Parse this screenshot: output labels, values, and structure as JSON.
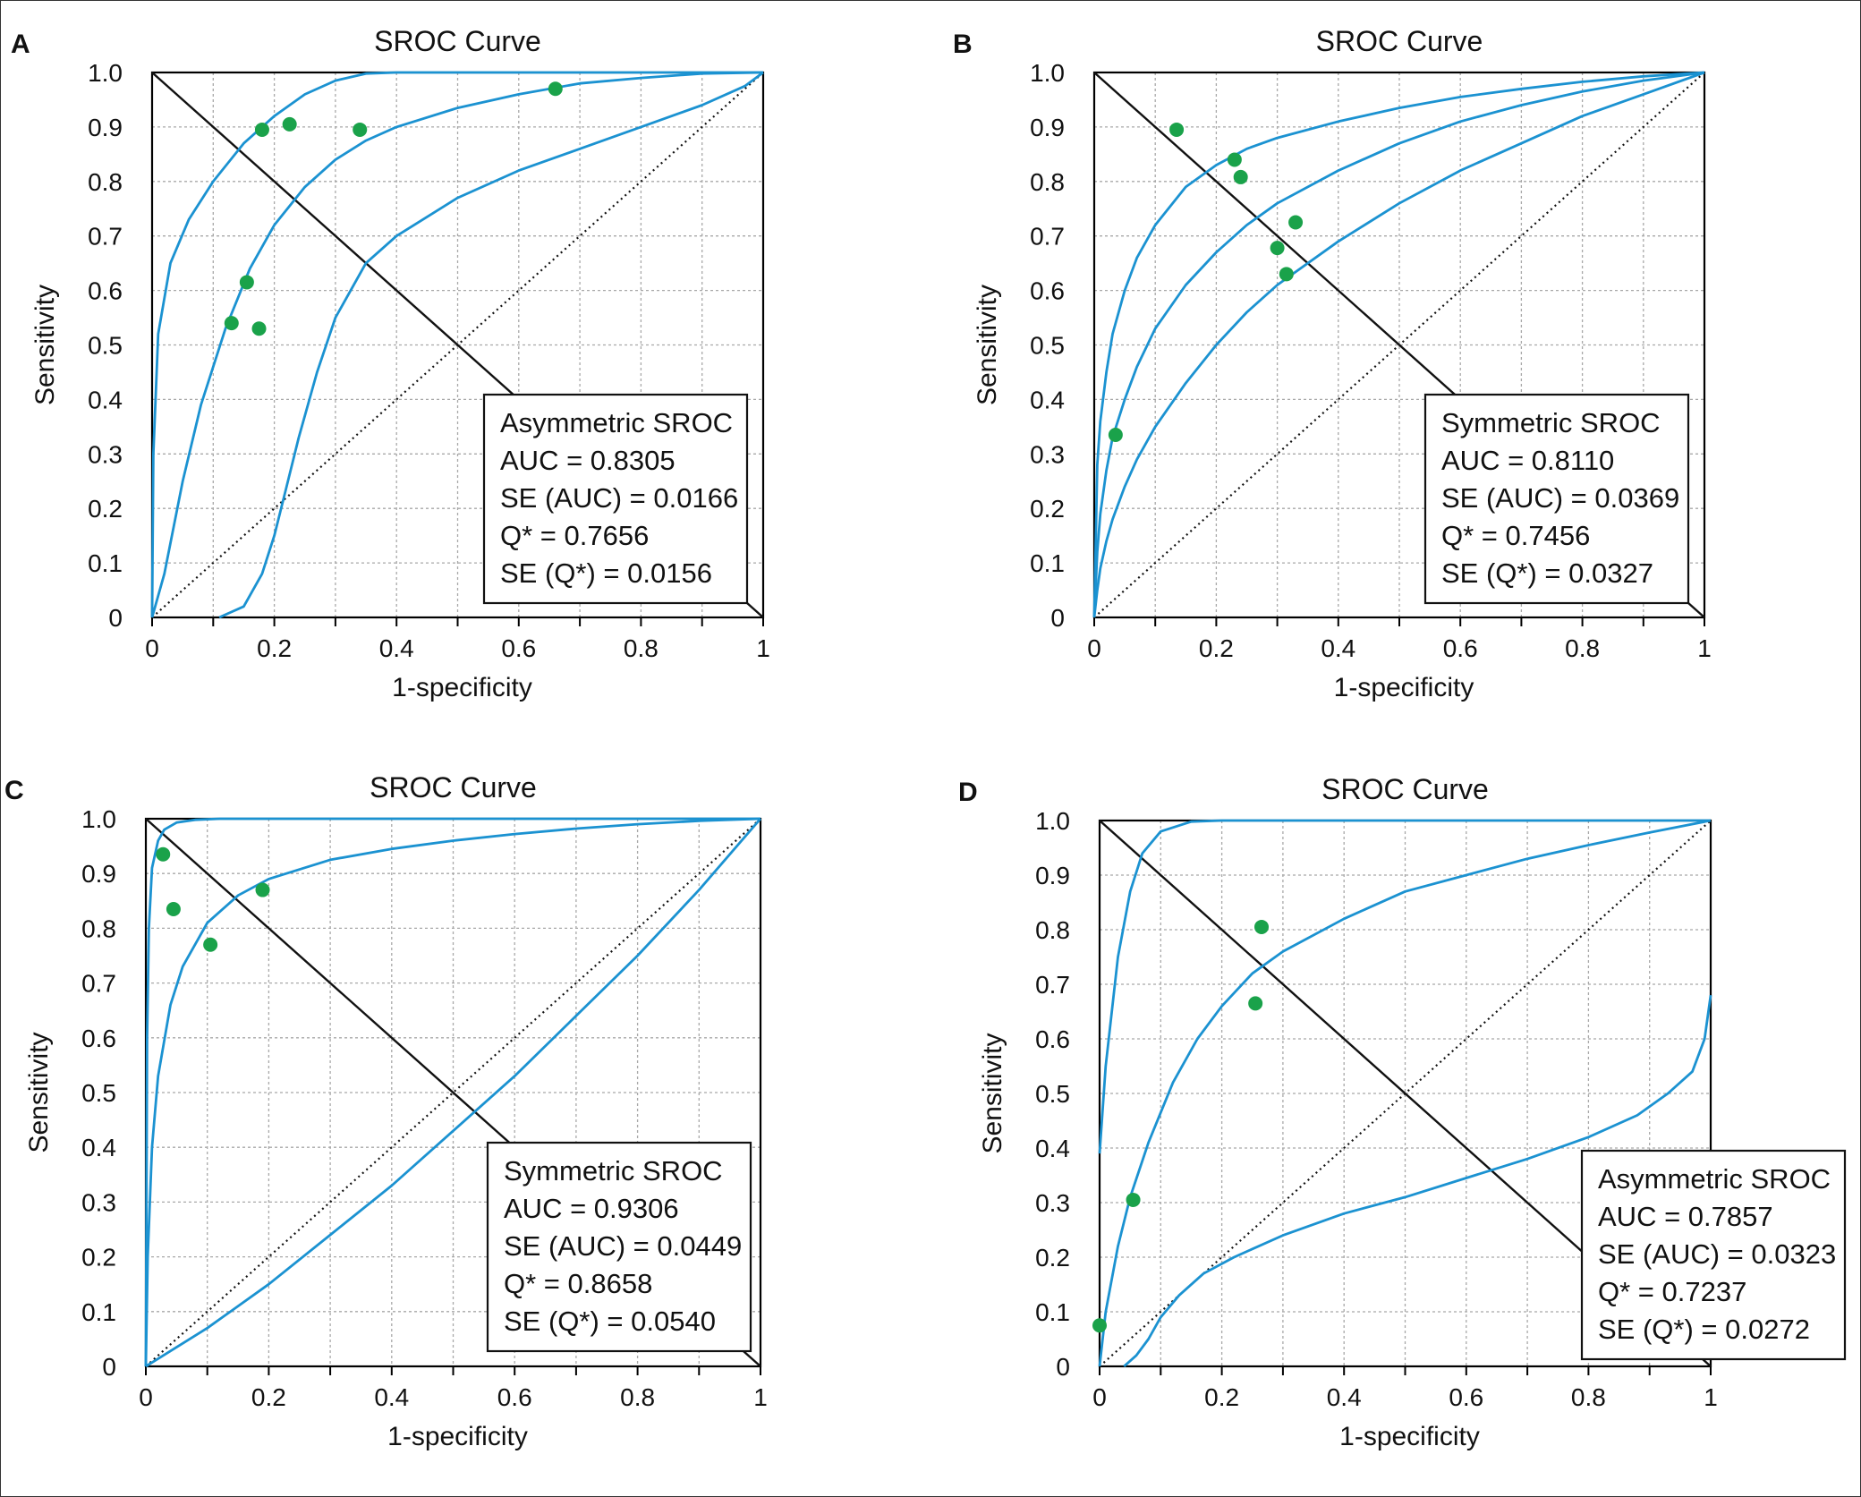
{
  "colors": {
    "curve": "#1b92d1",
    "point": "#1aa24a",
    "grid": "#a8a8a8",
    "axes": "#000000",
    "diagonal": "#111111"
  },
  "chart_data": [
    {
      "panel": "A",
      "type": "line",
      "title": "SROC Curve",
      "xlabel": "1-specificity",
      "ylabel": "Sensitivity",
      "xlim": [
        0,
        1
      ],
      "ylim": [
        0,
        1
      ],
      "x_ticks": [
        "0",
        "0.2",
        "0.4",
        "0.6",
        "0.8",
        "1"
      ],
      "y_ticks": [
        "0",
        "0.1",
        "0.2",
        "0.3",
        "0.4",
        "0.5",
        "0.6",
        "0.7",
        "0.8",
        "0.9",
        "1.0"
      ],
      "grid": true,
      "legend_position": "bottom-right",
      "stats": [
        "Asymmetric SROC",
        "AUC = 0.8305",
        "SE (AUC) = 0.0166",
        "Q* = 0.7656",
        "SE (Q*) = 0.0156"
      ],
      "series": [
        {
          "values": [
            [
              0,
              0
            ],
            [
              0.002,
              0.3
            ],
            [
              0.01,
              0.52
            ],
            [
              0.03,
              0.65
            ],
            [
              0.06,
              0.73
            ],
            [
              0.1,
              0.8
            ],
            [
              0.15,
              0.87
            ],
            [
              0.2,
              0.92
            ],
            [
              0.25,
              0.96
            ],
            [
              0.3,
              0.985
            ],
            [
              0.35,
              0.998
            ],
            [
              0.4,
              1.0
            ],
            [
              1,
              1
            ]
          ]
        },
        {
          "values": [
            [
              0,
              0
            ],
            [
              0.02,
              0.08
            ],
            [
              0.05,
              0.25
            ],
            [
              0.08,
              0.39
            ],
            [
              0.12,
              0.53
            ],
            [
              0.16,
              0.64
            ],
            [
              0.2,
              0.72
            ],
            [
              0.25,
              0.79
            ],
            [
              0.3,
              0.84
            ],
            [
              0.35,
              0.875
            ],
            [
              0.4,
              0.9
            ],
            [
              0.5,
              0.935
            ],
            [
              0.6,
              0.96
            ],
            [
              0.7,
              0.98
            ],
            [
              0.8,
              0.99
            ],
            [
              0.9,
              0.998
            ],
            [
              1,
              1
            ]
          ]
        },
        {
          "values": [
            [
              0.11,
              0
            ],
            [
              0.15,
              0.02
            ],
            [
              0.18,
              0.08
            ],
            [
              0.2,
              0.15
            ],
            [
              0.22,
              0.24
            ],
            [
              0.24,
              0.33
            ],
            [
              0.27,
              0.45
            ],
            [
              0.3,
              0.55
            ],
            [
              0.35,
              0.65
            ],
            [
              0.4,
              0.7
            ],
            [
              0.5,
              0.77
            ],
            [
              0.6,
              0.82
            ],
            [
              0.7,
              0.86
            ],
            [
              0.8,
              0.9
            ],
            [
              0.9,
              0.94
            ],
            [
              0.97,
              0.975
            ],
            [
              1,
              1
            ]
          ]
        }
      ],
      "points": [
        [
          0.18,
          0.895
        ],
        [
          0.225,
          0.905
        ],
        [
          0.34,
          0.895
        ],
        [
          0.66,
          0.97
        ],
        [
          0.155,
          0.615
        ],
        [
          0.13,
          0.54
        ],
        [
          0.175,
          0.53
        ]
      ],
      "reference_lines": [
        "diagonal y = x (dotted)",
        "anti-diagonal y = 1 - x (solid)"
      ]
    },
    {
      "panel": "B",
      "type": "line",
      "title": "SROC Curve",
      "xlabel": "1-specificity",
      "ylabel": "Sensitivity",
      "xlim": [
        0,
        1
      ],
      "ylim": [
        0,
        1
      ],
      "x_ticks": [
        "0",
        "0.2",
        "0.4",
        "0.6",
        "0.8",
        "1"
      ],
      "y_ticks": [
        "0",
        "0.1",
        "0.2",
        "0.3",
        "0.4",
        "0.5",
        "0.6",
        "0.7",
        "0.8",
        "0.9",
        "1.0"
      ],
      "grid": true,
      "legend_position": "bottom-right",
      "stats": [
        "Symmetric SROC",
        "AUC = 0.8110",
        "SE (AUC) = 0.0369",
        "Q* = 0.7456",
        "SE (Q*) = 0.0327"
      ],
      "series": [
        {
          "values": [
            [
              0,
              0
            ],
            [
              0.005,
              0.28
            ],
            [
              0.01,
              0.36
            ],
            [
              0.02,
              0.45
            ],
            [
              0.03,
              0.52
            ],
            [
              0.05,
              0.6
            ],
            [
              0.07,
              0.66
            ],
            [
              0.1,
              0.72
            ],
            [
              0.15,
              0.79
            ],
            [
              0.2,
              0.83
            ],
            [
              0.25,
              0.86
            ],
            [
              0.3,
              0.88
            ],
            [
              0.4,
              0.91
            ],
            [
              0.5,
              0.935
            ],
            [
              0.6,
              0.955
            ],
            [
              0.7,
              0.97
            ],
            [
              0.8,
              0.983
            ],
            [
              0.9,
              0.993
            ],
            [
              1,
              1
            ]
          ]
        },
        {
          "values": [
            [
              0,
              0
            ],
            [
              0.005,
              0.12
            ],
            [
              0.01,
              0.19
            ],
            [
              0.02,
              0.27
            ],
            [
              0.03,
              0.33
            ],
            [
              0.05,
              0.4
            ],
            [
              0.07,
              0.46
            ],
            [
              0.1,
              0.53
            ],
            [
              0.15,
              0.61
            ],
            [
              0.2,
              0.67
            ],
            [
              0.25,
              0.72
            ],
            [
              0.3,
              0.76
            ],
            [
              0.4,
              0.82
            ],
            [
              0.5,
              0.87
            ],
            [
              0.6,
              0.91
            ],
            [
              0.7,
              0.94
            ],
            [
              0.8,
              0.965
            ],
            [
              0.9,
              0.985
            ],
            [
              1,
              1
            ]
          ]
        },
        {
          "values": [
            [
              0,
              0
            ],
            [
              0.005,
              0.05
            ],
            [
              0.01,
              0.09
            ],
            [
              0.02,
              0.14
            ],
            [
              0.03,
              0.18
            ],
            [
              0.05,
              0.24
            ],
            [
              0.07,
              0.29
            ],
            [
              0.1,
              0.35
            ],
            [
              0.15,
              0.43
            ],
            [
              0.2,
              0.5
            ],
            [
              0.25,
              0.56
            ],
            [
              0.3,
              0.61
            ],
            [
              0.4,
              0.69
            ],
            [
              0.5,
              0.76
            ],
            [
              0.6,
              0.82
            ],
            [
              0.7,
              0.87
            ],
            [
              0.8,
              0.92
            ],
            [
              0.9,
              0.96
            ],
            [
              1,
              1
            ]
          ]
        }
      ],
      "points": [
        [
          0.035,
          0.335
        ],
        [
          0.135,
          0.895
        ],
        [
          0.23,
          0.84
        ],
        [
          0.24,
          0.808
        ],
        [
          0.33,
          0.725
        ],
        [
          0.3,
          0.678
        ],
        [
          0.315,
          0.63
        ]
      ],
      "reference_lines": [
        "diagonal y = x (dotted)",
        "anti-diagonal y = 1 - x (solid)"
      ]
    },
    {
      "panel": "C",
      "type": "line",
      "title": "SROC Curve",
      "xlabel": "1-specificity",
      "ylabel": "Sensitivity",
      "xlim": [
        0,
        1
      ],
      "ylim": [
        0,
        1
      ],
      "x_ticks": [
        "0",
        "0.2",
        "0.4",
        "0.6",
        "0.8",
        "1"
      ],
      "y_ticks": [
        "0",
        "0.1",
        "0.2",
        "0.3",
        "0.4",
        "0.5",
        "0.6",
        "0.7",
        "0.8",
        "0.9",
        "1.0"
      ],
      "grid": true,
      "legend_position": "bottom-right",
      "stats": [
        "Symmetric SROC",
        "AUC = 0.9306",
        "SE (AUC) = 0.0449",
        "Q* = 0.8658",
        "SE (Q*) = 0.0540"
      ],
      "series": [
        {
          "values": [
            [
              0,
              0
            ],
            [
              0.002,
              0.6
            ],
            [
              0.005,
              0.8
            ],
            [
              0.01,
              0.91
            ],
            [
              0.02,
              0.96
            ],
            [
              0.03,
              0.98
            ],
            [
              0.05,
              0.993
            ],
            [
              0.08,
              0.998
            ],
            [
              0.12,
              1.0
            ],
            [
              1,
              1
            ]
          ]
        },
        {
          "values": [
            [
              0,
              0
            ],
            [
              0.003,
              0.2
            ],
            [
              0.01,
              0.4
            ],
            [
              0.02,
              0.53
            ],
            [
              0.04,
              0.66
            ],
            [
              0.06,
              0.73
            ],
            [
              0.1,
              0.81
            ],
            [
              0.15,
              0.86
            ],
            [
              0.2,
              0.89
            ],
            [
              0.3,
              0.925
            ],
            [
              0.4,
              0.945
            ],
            [
              0.5,
              0.96
            ],
            [
              0.6,
              0.972
            ],
            [
              0.7,
              0.982
            ],
            [
              0.8,
              0.99
            ],
            [
              0.9,
              0.996
            ],
            [
              1,
              1
            ]
          ]
        },
        {
          "values": [
            [
              0,
              0
            ],
            [
              0.1,
              0.07
            ],
            [
              0.2,
              0.15
            ],
            [
              0.3,
              0.24
            ],
            [
              0.4,
              0.33
            ],
            [
              0.5,
              0.43
            ],
            [
              0.6,
              0.53
            ],
            [
              0.7,
              0.64
            ],
            [
              0.8,
              0.75
            ],
            [
              0.9,
              0.87
            ],
            [
              1,
              1
            ]
          ]
        }
      ],
      "points": [
        [
          0.028,
          0.935
        ],
        [
          0.045,
          0.835
        ],
        [
          0.105,
          0.77
        ],
        [
          0.19,
          0.87
        ]
      ],
      "reference_lines": [
        "diagonal y = x (dotted)",
        "anti-diagonal y = 1 - x (solid)"
      ]
    },
    {
      "panel": "D",
      "type": "line",
      "title": "SROC Curve",
      "xlabel": "1-specificity",
      "ylabel": "Sensitivity",
      "xlim": [
        0,
        1
      ],
      "ylim": [
        0,
        1
      ],
      "x_ticks": [
        "0",
        "0.2",
        "0.4",
        "0.6",
        "0.8",
        "1"
      ],
      "y_ticks": [
        "0",
        "0.1",
        "0.2",
        "0.3",
        "0.4",
        "0.5",
        "0.6",
        "0.7",
        "0.8",
        "0.9",
        "1.0"
      ],
      "grid": true,
      "legend_position": "bottom-right",
      "stats": [
        "Asymmetric SROC",
        "AUC = 0.7857",
        "SE (AUC) = 0.0323",
        "Q* = 0.7237",
        "SE (Q*) = 0.0272"
      ],
      "series": [
        {
          "values": [
            [
              0,
              0.39
            ],
            [
              0.01,
              0.55
            ],
            [
              0.03,
              0.75
            ],
            [
              0.05,
              0.87
            ],
            [
              0.07,
              0.94
            ],
            [
              0.1,
              0.98
            ],
            [
              0.15,
              0.998
            ],
            [
              0.2,
              1.0
            ],
            [
              1,
              1
            ]
          ]
        },
        {
          "values": [
            [
              0,
              0
            ],
            [
              0.01,
              0.1
            ],
            [
              0.03,
              0.22
            ],
            [
              0.05,
              0.31
            ],
            [
              0.08,
              0.41
            ],
            [
              0.12,
              0.52
            ],
            [
              0.16,
              0.6
            ],
            [
              0.2,
              0.66
            ],
            [
              0.25,
              0.72
            ],
            [
              0.3,
              0.76
            ],
            [
              0.4,
              0.82
            ],
            [
              0.5,
              0.87
            ],
            [
              0.6,
              0.9
            ],
            [
              0.7,
              0.93
            ],
            [
              0.8,
              0.955
            ],
            [
              0.9,
              0.978
            ],
            [
              1,
              1
            ]
          ]
        },
        {
          "values": [
            [
              0.04,
              0
            ],
            [
              0.06,
              0.02
            ],
            [
              0.08,
              0.05
            ],
            [
              0.1,
              0.09
            ],
            [
              0.13,
              0.13
            ],
            [
              0.17,
              0.17
            ],
            [
              0.22,
              0.2
            ],
            [
              0.3,
              0.24
            ],
            [
              0.4,
              0.28
            ],
            [
              0.5,
              0.31
            ],
            [
              0.6,
              0.345
            ],
            [
              0.7,
              0.38
            ],
            [
              0.8,
              0.42
            ],
            [
              0.88,
              0.46
            ],
            [
              0.93,
              0.5
            ],
            [
              0.97,
              0.54
            ],
            [
              0.99,
              0.6
            ],
            [
              1,
              0.68
            ]
          ]
        }
      ],
      "points": [
        [
          0,
          0.075
        ],
        [
          0.055,
          0.305
        ],
        [
          0.255,
          0.665
        ],
        [
          0.265,
          0.805
        ]
      ],
      "reference_lines": [
        "diagonal y = x (dotted)",
        "anti-diagonal y = 1 - x (solid)"
      ]
    }
  ]
}
